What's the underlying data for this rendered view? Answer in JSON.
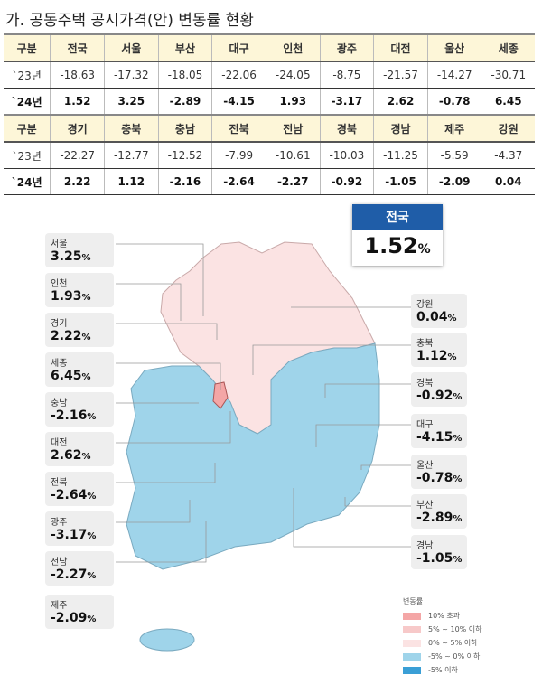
{
  "title": "가. 공동주택  공시가격(안) 변동률  현황",
  "table": {
    "blocks": [
      {
        "header": [
          "구분",
          "전국",
          "서울",
          "부산",
          "대구",
          "인천",
          "광주",
          "대전",
          "울산",
          "세종"
        ],
        "rows": [
          [
            "`23년",
            "-18.63",
            "-17.32",
            "-18.05",
            "-22.06",
            "-24.05",
            "-8.75",
            "-21.57",
            "-14.27",
            "-30.71"
          ],
          [
            "`24년",
            "1.52",
            "3.25",
            "-2.89",
            "-4.15",
            "1.93",
            "-3.17",
            "2.62",
            "-0.78",
            "6.45"
          ]
        ]
      },
      {
        "header": [
          "구분",
          "경기",
          "충북",
          "충남",
          "전북",
          "전남",
          "경북",
          "경남",
          "제주",
          "강원"
        ],
        "rows": [
          [
            "`23년",
            "-22.27",
            "-12.77",
            "-12.52",
            "-7.99",
            "-10.61",
            "-10.03",
            "-11.25",
            "-5.59",
            "-4.37"
          ],
          [
            "`24년",
            "2.22",
            "1.12",
            "-2.16",
            "-2.64",
            "-2.27",
            "-0.92",
            "-1.05",
            "-2.09",
            "0.04"
          ]
        ]
      }
    ]
  },
  "national": {
    "label": "전국",
    "value": "1.52",
    "unit": "%"
  },
  "map_labels_left": [
    {
      "name": "서울",
      "value": "3.25"
    },
    {
      "name": "인천",
      "value": "1.93"
    },
    {
      "name": "경기",
      "value": "2.22"
    },
    {
      "name": "세종",
      "value": "6.45"
    },
    {
      "name": "충남",
      "value": "-2.16"
    },
    {
      "name": "대전",
      "value": "2.62"
    },
    {
      "name": "전북",
      "value": "-2.64"
    },
    {
      "name": "광주",
      "value": "-3.17"
    },
    {
      "name": "전남",
      "value": "-2.27"
    },
    {
      "name": "제주",
      "value": "-2.09"
    }
  ],
  "map_labels_right": [
    {
      "name": "강원",
      "value": "0.04"
    },
    {
      "name": "충북",
      "value": "1.12"
    },
    {
      "name": "경북",
      "value": "-0.92"
    },
    {
      "name": "대구",
      "value": "-4.15"
    },
    {
      "name": "울산",
      "value": "-0.78"
    },
    {
      "name": "부산",
      "value": "-2.89"
    },
    {
      "name": "경남",
      "value": "-1.05"
    }
  ],
  "unit": "%",
  "legend": {
    "title": "변동률",
    "items": [
      {
        "label": "10% 초과",
        "color": "#f4a6a6"
      },
      {
        "label": "5% ~ 10% 이하",
        "color": "#f7c9c9"
      },
      {
        "label": "0% ~ 5% 이하",
        "color": "#fbe3e3"
      },
      {
        "label": "-5% ~ 0% 이하",
        "color": "#9fd4ea"
      },
      {
        "label": "-5% 이하",
        "color": "#3a9fd6"
      }
    ]
  }
}
